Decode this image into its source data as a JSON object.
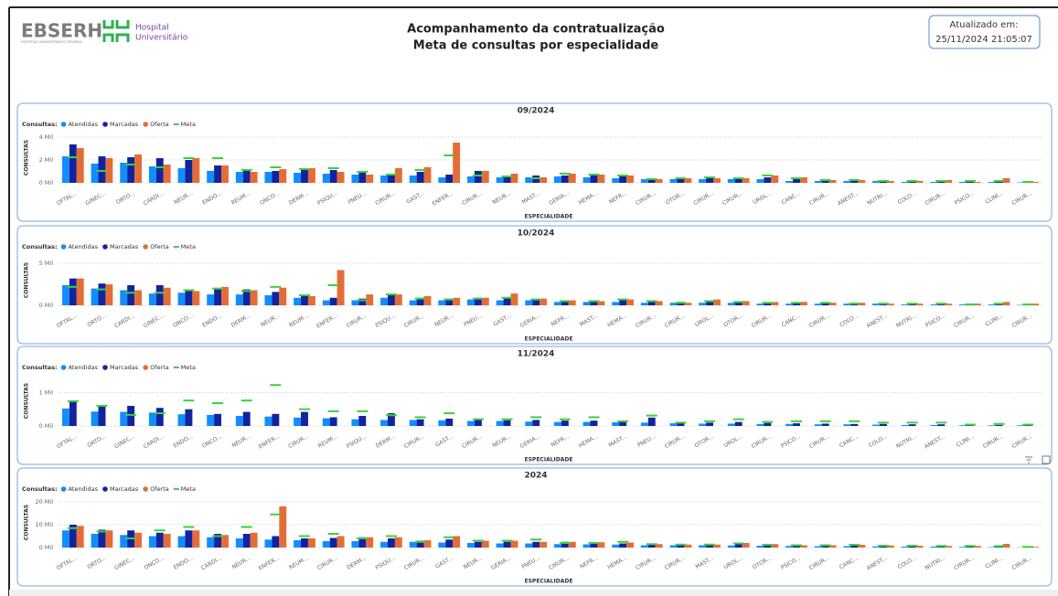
{
  "header": {
    "brand": "EBSERH",
    "tagline": "HOSPITAIS UNIVERSITÁRIOS FEDERAIS",
    "hospital_line1": "Hospital",
    "hospital_line2": "Universitário",
    "title_line1": "Acompanhamento da contratualização",
    "title_line2": "Meta de consultas por especialidade",
    "updated_label": "Atualizado em:",
    "updated_value": "25/11/2024 21:05:07"
  },
  "chart_data": [
    {
      "type": "bar",
      "title": "09/2024",
      "legend_title": "Consultas:",
      "xlabel": "ESPECIALIDADE",
      "ylabel": "CONSULTAS",
      "grid": true,
      "ylim": [
        0,
        4400
      ],
      "yticks": [
        {
          "value": 0,
          "label": "0 Mil"
        },
        {
          "value": 2000,
          "label": "2 Mil"
        },
        {
          "value": 4000,
          "label": "4 Mil"
        }
      ],
      "categories": [
        "OFTAL...",
        "GINEC...",
        "ORTO...",
        "CARDI...",
        "NEUR...",
        "ENDO...",
        "REUM...",
        "ONCO...",
        "DERM...",
        "PSIQU...",
        "PNEU...",
        "CIRUR...",
        "GAST...",
        "ENFER...",
        "CIRUR...",
        "NEUR...",
        "MAST...",
        "GERIA...",
        "HEMA...",
        "NEFR...",
        "CIRUR...",
        "OTOR...",
        "CIRUR...",
        "CIRUR...",
        "UROL...",
        "CANC...",
        "CIRUR...",
        "ANEST...",
        "NUTRI...",
        "COLO...",
        "CIRUR...",
        "PSICO...",
        "CLINI...",
        "CIRUR..."
      ],
      "series": [
        {
          "name": "Atendidas",
          "color": "#118DFF",
          "values": [
            2320,
            1680,
            1760,
            1440,
            1280,
            1040,
            960,
            960,
            880,
            800,
            720,
            640,
            640,
            480,
            560,
            480,
            480,
            560,
            480,
            400,
            320,
            320,
            320,
            320,
            320,
            160,
            160,
            160,
            160,
            80,
            80,
            80,
            80,
            40
          ]
        },
        {
          "name": "Marcadas",
          "color": "#12239E",
          "values": [
            3360,
            2320,
            2240,
            2160,
            2000,
            1520,
            1200,
            1040,
            1280,
            1120,
            880,
            800,
            960,
            720,
            1040,
            640,
            640,
            640,
            640,
            560,
            400,
            400,
            400,
            400,
            480,
            320,
            240,
            240,
            160,
            160,
            160,
            80,
            80,
            80
          ]
        },
        {
          "name": "Oferta",
          "color": "#E66C37",
          "values": [
            3040,
            2160,
            2480,
            1600,
            2160,
            1520,
            960,
            1200,
            1280,
            960,
            720,
            1280,
            1360,
            3520,
            1040,
            800,
            480,
            800,
            720,
            640,
            320,
            400,
            400,
            400,
            640,
            480,
            240,
            240,
            160,
            160,
            240,
            80,
            400,
            80
          ]
        },
        {
          "name": "Meta",
          "color": "#3BD13B",
          "mark": "dash",
          "values": [
            2240,
            1040,
            1600,
            1360,
            2160,
            2160,
            1120,
            1360,
            1200,
            1280,
            960,
            720,
            1120,
            2400,
            640,
            560,
            400,
            800,
            720,
            640,
            320,
            400,
            480,
            400,
            640,
            400,
            240,
            240,
            160,
            160,
            160,
            160,
            160,
            80
          ]
        }
      ]
    },
    {
      "type": "bar",
      "title": "10/2024",
      "legend_title": "Consultas:",
      "xlabel": "ESPECIALIDADE",
      "ylabel": "CONSULTAS",
      "grid": true,
      "ylim": [
        0,
        6000
      ],
      "yticks": [
        {
          "value": 0,
          "label": "0 Mil"
        },
        {
          "value": 5000,
          "label": "5 Mil"
        }
      ],
      "categories": [
        "OFTAL...",
        "ORTO...",
        "CARDI...",
        "GINEC...",
        "ONCO...",
        "ENDO...",
        "DERM...",
        "NEUR...",
        "REUM...",
        "ENFER...",
        "CIRUR...",
        "PSIQU...",
        "CIRUR...",
        "NEUR...",
        "PNEU...",
        "GAST...",
        "GERIA...",
        "NEFR...",
        "MAST...",
        "HEMA...",
        "CIRUR...",
        "CIRUR...",
        "UROL...",
        "OTOR...",
        "CIRUR...",
        "CANC...",
        "CIRUR...",
        "COLO...",
        "ANEST...",
        "NUTRI...",
        "PSICO...",
        "CIRUR...",
        "CLINI...",
        "CIRUR..."
      ],
      "series": [
        {
          "name": "Atendidas",
          "color": "#118DFF",
          "values": [
            2400,
            2000,
            1800,
            1400,
            1500,
            1300,
            1300,
            1200,
            900,
            600,
            600,
            900,
            600,
            600,
            700,
            600,
            600,
            400,
            400,
            400,
            300,
            300,
            300,
            300,
            200,
            200,
            200,
            200,
            200,
            100,
            100,
            100,
            100,
            50
          ]
        },
        {
          "name": "Marcadas",
          "color": "#12239E",
          "values": [
            3200,
            2600,
            2400,
            2400,
            1800,
            1900,
            1900,
            1600,
            1200,
            900,
            800,
            1200,
            900,
            700,
            900,
            900,
            700,
            500,
            600,
            600,
            500,
            400,
            500,
            400,
            300,
            300,
            300,
            300,
            200,
            200,
            200,
            200,
            100,
            100
          ]
        },
        {
          "name": "Oferta",
          "color": "#E66C37",
          "values": [
            3200,
            2500,
            1800,
            2100,
            1700,
            2200,
            1800,
            2100,
            1100,
            4200,
            1300,
            1300,
            1100,
            900,
            900,
            1400,
            800,
            600,
            500,
            700,
            500,
            300,
            700,
            500,
            400,
            400,
            300,
            300,
            200,
            200,
            200,
            200,
            400,
            200
          ]
        },
        {
          "name": "Meta",
          "color": "#3BD13B",
          "mark": "dash",
          "values": [
            2200,
            1900,
            1500,
            1500,
            1800,
            2000,
            1700,
            2200,
            1200,
            2400,
            600,
            1300,
            800,
            700,
            800,
            900,
            700,
            500,
            500,
            700,
            500,
            300,
            500,
            400,
            300,
            300,
            300,
            200,
            200,
            200,
            200,
            100,
            200,
            100
          ]
        }
      ]
    },
    {
      "type": "bar",
      "title": "11/2024",
      "legend_title": "Consultas:",
      "xlabel": "ESPECIALIDADE",
      "ylabel": "CONSULTAS",
      "grid": true,
      "ylim": [
        0,
        1500
      ],
      "yticks": [
        {
          "value": 0,
          "label": "0 Mil"
        },
        {
          "value": 1000,
          "label": "1 Mil"
        }
      ],
      "categories": [
        "OFTAL...",
        "ORTO...",
        "GINEC...",
        "CARDI...",
        "ENDO...",
        "ONCO...",
        "NEUR...",
        "ENFER...",
        "CIRUR...",
        "REUM...",
        "PSIQU...",
        "DERM...",
        "CIRUR...",
        "GAST...",
        "CIRUR...",
        "NEUR...",
        "GERIA...",
        "NEFR...",
        "HEMA...",
        "MAST...",
        "PNEU...",
        "CIRUR...",
        "OTOR...",
        "UROL...",
        "CIRUR...",
        "PSICO...",
        "CIRUR...",
        "CANC...",
        "COLO...",
        "NUTRI...",
        "ANEST...",
        "CLINI...",
        "CIRUR...",
        "CIRUR..."
      ],
      "series": [
        {
          "name": "Atendidas",
          "color": "#118DFF",
          "values": [
            520,
            430,
            420,
            400,
            350,
            330,
            300,
            280,
            250,
            230,
            200,
            180,
            180,
            170,
            150,
            150,
            130,
            120,
            120,
            110,
            100,
            80,
            70,
            70,
            60,
            60,
            50,
            50,
            40,
            30,
            30,
            20,
            20,
            20
          ]
        },
        {
          "name": "Marcadas",
          "color": "#12239E",
          "values": [
            760,
            620,
            600,
            540,
            500,
            360,
            420,
            360,
            420,
            260,
            300,
            380,
            200,
            220,
            200,
            170,
            180,
            160,
            160,
            140,
            250,
            100,
            100,
            120,
            90,
            80,
            70,
            60,
            60,
            50,
            50,
            30,
            30,
            30
          ]
        },
        {
          "name": "Oferta",
          "color": "#E66C37",
          "values": [
            0,
            0,
            0,
            0,
            0,
            0,
            0,
            0,
            0,
            0,
            0,
            0,
            0,
            0,
            0,
            0,
            0,
            0,
            0,
            0,
            0,
            0,
            0,
            0,
            0,
            0,
            0,
            0,
            0,
            0,
            0,
            0,
            0,
            0
          ]
        },
        {
          "name": "Meta",
          "color": "#3BD13B",
          "mark": "dash",
          "values": [
            740,
            600,
            330,
            380,
            760,
            680,
            760,
            1220,
            500,
            440,
            440,
            320,
            260,
            380,
            200,
            200,
            260,
            200,
            260,
            140,
            310,
            100,
            140,
            200,
            120,
            140,
            140,
            140,
            100,
            100,
            100,
            40,
            60,
            40
          ]
        }
      ]
    },
    {
      "type": "bar",
      "title": "2024",
      "legend_title": "Consultas:",
      "xlabel": "ESPECIALIDADE",
      "ylabel": "CONSULTAS",
      "grid": true,
      "ylim": [
        0,
        22000
      ],
      "yticks": [
        {
          "value": 0,
          "label": "0 Mil"
        },
        {
          "value": 10000,
          "label": "10 Mil"
        },
        {
          "value": 20000,
          "label": "20 Mil"
        }
      ],
      "categories": [
        "OFTAL...",
        "ORTO...",
        "GINEC...",
        "ONCO...",
        "ENDO...",
        "CARDI...",
        "NEUR...",
        "ENFER...",
        "REUM...",
        "CIRUR...",
        "DERM...",
        "PSIQU...",
        "CIRUR...",
        "GAST...",
        "NEUR...",
        "GERIA...",
        "PNEU...",
        "CIRUR...",
        "NEFR...",
        "HEMA...",
        "CIRUR...",
        "CIRUR...",
        "MAST...",
        "UROL...",
        "OTOR...",
        "PSICO...",
        "CIRUR...",
        "CANC...",
        "ANEST...",
        "COLO...",
        "NUTRI...",
        "CIRUR...",
        "CLINI...",
        "CIRUR..."
      ],
      "series": [
        {
          "name": "Atendidas",
          "color": "#118DFF",
          "values": [
            7500,
            6000,
            5500,
            5000,
            5000,
            4500,
            4000,
            3500,
            3200,
            2800,
            2800,
            2500,
            2500,
            2200,
            2000,
            1800,
            1800,
            1500,
            1400,
            1300,
            1000,
            1000,
            1000,
            900,
            800,
            700,
            600,
            600,
            500,
            400,
            400,
            300,
            200,
            100
          ]
        },
        {
          "name": "Marcadas",
          "color": "#12239E",
          "values": [
            10000,
            7800,
            7500,
            6500,
            7500,
            6000,
            6000,
            5000,
            4000,
            4200,
            4500,
            4000,
            3000,
            3500,
            2500,
            2500,
            2500,
            2500,
            2000,
            1800,
            1500,
            1300,
            1400,
            1800,
            1300,
            1000,
            900,
            900,
            800,
            700,
            700,
            500,
            400,
            300
          ]
        },
        {
          "name": "Oferta",
          "color": "#E66C37",
          "values": [
            9500,
            7500,
            6500,
            6000,
            7500,
            5500,
            6500,
            18000,
            4000,
            5000,
            4500,
            4500,
            3200,
            5000,
            3000,
            3000,
            2500,
            2500,
            2300,
            2200,
            1500,
            1300,
            1300,
            2000,
            1500,
            1000,
            1000,
            1200,
            900,
            800,
            700,
            700,
            1600,
            300
          ]
        },
        {
          "name": "Meta",
          "color": "#3BD13B",
          "mark": "dash",
          "values": [
            8500,
            7000,
            4000,
            7500,
            9000,
            5000,
            9000,
            14500,
            5000,
            6000,
            4000,
            5000,
            2500,
            4500,
            3000,
            3000,
            3500,
            2000,
            2000,
            2500,
            1500,
            1300,
            1300,
            1800,
            1200,
            1000,
            1000,
            1200,
            800,
            800,
            700,
            700,
            600,
            300
          ]
        }
      ]
    }
  ]
}
